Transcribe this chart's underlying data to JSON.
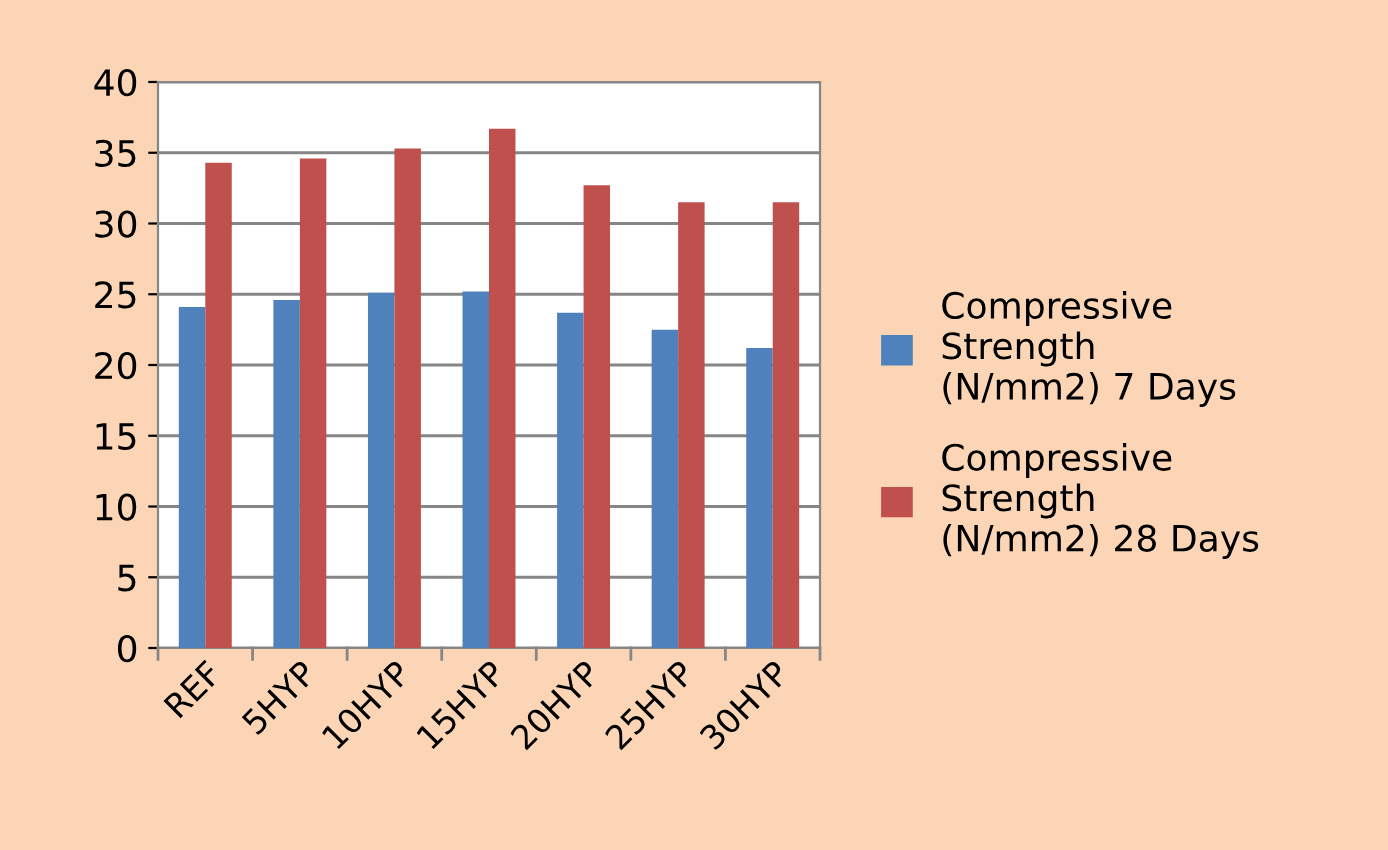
{
  "chart_data": {
    "type": "bar",
    "categories": [
      "REF",
      "5HYP",
      "10HYP",
      "15HYP",
      "20HYP",
      "25HYP",
      "30HYP"
    ],
    "series": [
      {
        "name": "Compressive Strength (N/mm2) 7 Days",
        "color": "#4f81bd",
        "values": [
          24.1,
          24.6,
          25.1,
          25.2,
          23.7,
          22.5,
          21.2
        ]
      },
      {
        "name": "Compressive Strength (N/mm2) 28 Days",
        "color": "#c0504d",
        "values": [
          34.3,
          34.6,
          35.3,
          36.7,
          32.7,
          31.5,
          31.5
        ]
      }
    ],
    "ylim": [
      0,
      40
    ],
    "yticks": [
      0,
      5,
      10,
      15,
      20,
      25,
      30,
      35,
      40
    ],
    "grid": "y",
    "legend": "right"
  }
}
